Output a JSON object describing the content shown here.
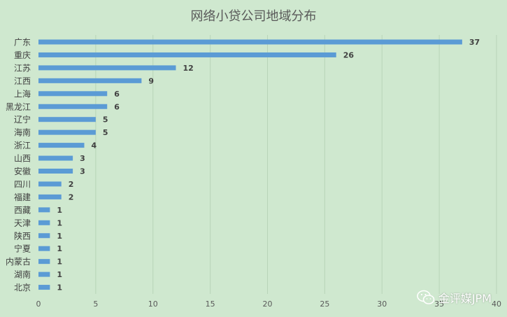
{
  "chart_data": {
    "type": "bar",
    "orientation": "horizontal",
    "title": "网络小贷公司地域分布",
    "categories": [
      "广东",
      "重庆",
      "江苏",
      "江西",
      "上海",
      "黑龙江",
      "辽宁",
      "海南",
      "浙江",
      "山西",
      "安徽",
      "四川",
      "福建",
      "西藏",
      "天津",
      "陕西",
      "宁夏",
      "内蒙古",
      "湖南",
      "北京"
    ],
    "values": [
      37,
      26,
      12,
      9,
      6,
      6,
      5,
      5,
      4,
      3,
      3,
      2,
      2,
      1,
      1,
      1,
      1,
      1,
      1,
      1
    ],
    "xlim": [
      0,
      40
    ],
    "xticks": [
      0,
      5,
      10,
      15,
      20,
      25,
      30,
      35,
      40
    ],
    "grid": true,
    "data_labels": true,
    "bar_color": "#5b9bd5",
    "background": "#cfe8cf"
  },
  "watermark": {
    "text": "金评媒JPM",
    "icon": "wechat-icon"
  }
}
